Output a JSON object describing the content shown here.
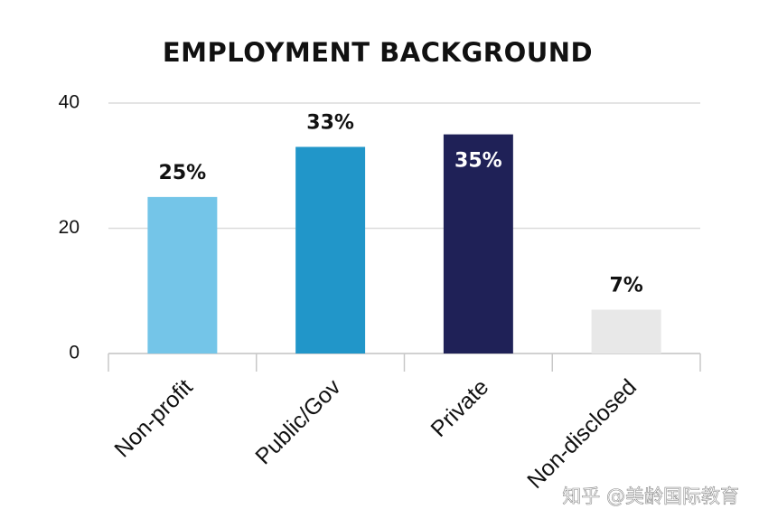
{
  "chart_data": {
    "type": "bar",
    "title": "EMPLOYMENT BACKGROUND",
    "categories": [
      "Non-profit",
      "Public/Gov",
      "Private",
      "Non-disclosed"
    ],
    "values": [
      25,
      33,
      35,
      7
    ],
    "value_labels": [
      "25%",
      "33%",
      "35%",
      "7%"
    ],
    "colors": [
      "#74c5e8",
      "#2196c9",
      "#1f2157",
      "#e8e8e8"
    ],
    "ylim": [
      0,
      40
    ],
    "yticks": [
      0,
      20,
      40
    ],
    "grid": true
  },
  "watermark": "知乎 @美龄国际教育"
}
